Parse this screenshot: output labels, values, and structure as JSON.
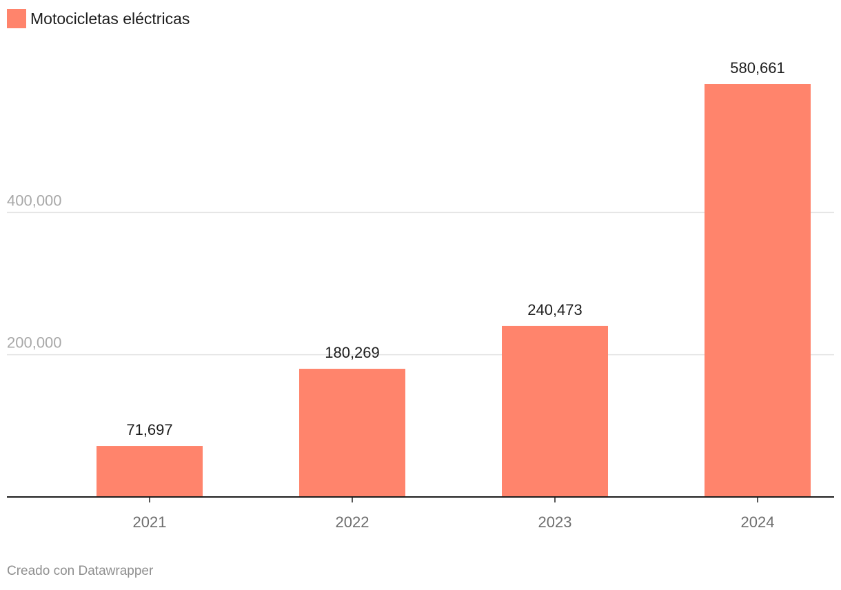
{
  "legend": {
    "label": "Motocicletas eléctricas",
    "color": "#ff846c"
  },
  "footer": {
    "credit": "Creado con Datawrapper"
  },
  "colors": {
    "bar": "#ff846c",
    "grid": "#e2e2e2",
    "axis": "#1d1d1d",
    "y_tick_text": "#a8a8a8",
    "x_tick_text": "#6e6e6e"
  },
  "chart_data": {
    "type": "bar",
    "title": "",
    "xlabel": "",
    "ylabel": "",
    "categories": [
      "2021",
      "2022",
      "2023",
      "2024"
    ],
    "series": [
      {
        "name": "Motocicletas eléctricas",
        "values": [
          71697,
          180269,
          240473,
          580661
        ]
      }
    ],
    "value_labels": [
      "71,697",
      "180,269",
      "240,473",
      "580,661"
    ],
    "ylim": [
      0,
      580661
    ],
    "yticks": [
      200000,
      400000
    ],
    "ytick_labels": [
      "200,000",
      "400,000"
    ],
    "grid": true,
    "legend_position": "top-left"
  }
}
